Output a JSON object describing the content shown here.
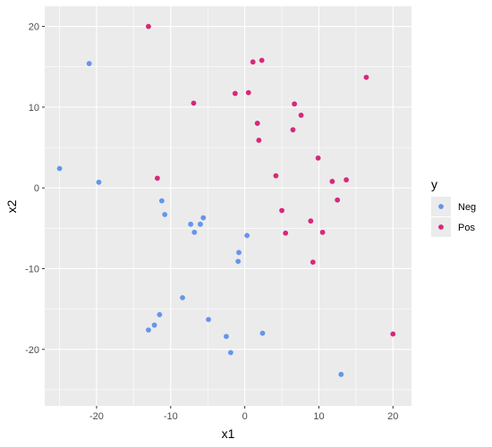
{
  "chart_data": {
    "type": "scatter",
    "xlabel": "x1",
    "ylabel": "x2",
    "xlim": [
      -27,
      22.5
    ],
    "ylim": [
      -27,
      22.5
    ],
    "x_ticks": [
      -20,
      -10,
      0,
      10,
      20
    ],
    "y_ticks": [
      -20,
      -10,
      0,
      10,
      20
    ],
    "grid": true,
    "legend": {
      "title": "y",
      "position": "right"
    },
    "colors": {
      "Neg": "#6495ED",
      "Pos": "#D7287A",
      "panel": "#EBEBEB",
      "grid": "#FFFFFF"
    },
    "series": [
      {
        "name": "Neg",
        "points": [
          [
            -25,
            2.4
          ],
          [
            -21,
            15.4
          ],
          [
            -19.7,
            0.7
          ],
          [
            -11.2,
            -1.6
          ],
          [
            -10.8,
            -3.3
          ],
          [
            -7.3,
            -4.5
          ],
          [
            -6.8,
            -5.5
          ],
          [
            -6,
            -4.5
          ],
          [
            -5.6,
            -3.7
          ],
          [
            -0.8,
            -8
          ],
          [
            -0.9,
            -9.1
          ],
          [
            0.3,
            -5.9
          ],
          [
            -8.4,
            -13.6
          ],
          [
            -11.5,
            -15.7
          ],
          [
            -12.2,
            -17
          ],
          [
            -13,
            -17.6
          ],
          [
            -4.9,
            -16.3
          ],
          [
            -2.5,
            -18.4
          ],
          [
            -1.9,
            -20.4
          ],
          [
            2.4,
            -18
          ],
          [
            13,
            -23.1
          ]
        ]
      },
      {
        "name": "Pos",
        "points": [
          [
            -13,
            20
          ],
          [
            -11.8,
            1.2
          ],
          [
            -6.9,
            10.5
          ],
          [
            -1.3,
            11.7
          ],
          [
            0.5,
            11.8
          ],
          [
            1.1,
            15.6
          ],
          [
            2.3,
            15.8
          ],
          [
            1.7,
            8
          ],
          [
            1.9,
            5.9
          ],
          [
            6.7,
            10.4
          ],
          [
            6.5,
            7.2
          ],
          [
            7.6,
            9
          ],
          [
            4.2,
            1.5
          ],
          [
            5,
            -2.8
          ],
          [
            5.5,
            -5.6
          ],
          [
            8.9,
            -4.1
          ],
          [
            9.9,
            3.7
          ],
          [
            11.8,
            0.8
          ],
          [
            12.5,
            -1.5
          ],
          [
            13.7,
            1
          ],
          [
            10.5,
            -5.5
          ],
          [
            9.2,
            -9.2
          ],
          [
            16.4,
            13.7
          ],
          [
            20,
            -18.1
          ]
        ]
      }
    ]
  }
}
